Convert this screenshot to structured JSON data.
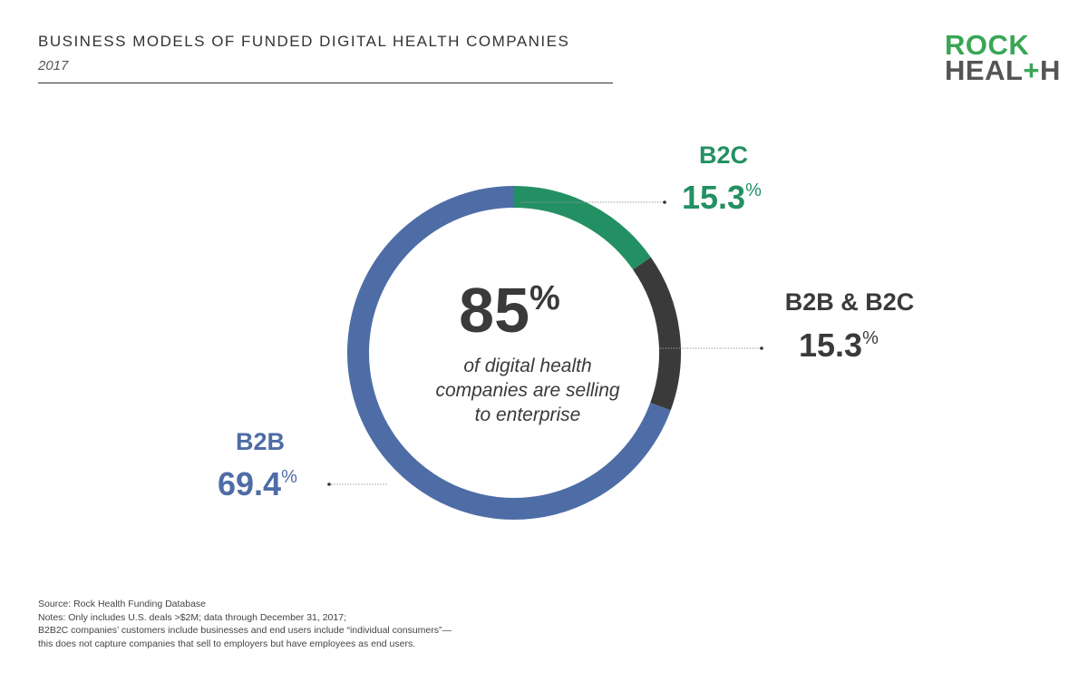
{
  "header": {
    "title": "BUSINESS MODELS OF FUNDED DIGITAL HEALTH COMPANIES",
    "subtitle": "2017"
  },
  "logo": {
    "line1": "ROCK",
    "line2_pre": "HEAL",
    "line2_plus": "+",
    "line2_post": "H",
    "colors": {
      "green": "#3aa655",
      "gray": "#555555"
    }
  },
  "chart_data": {
    "type": "pie",
    "style": "donut",
    "title": "BUSINESS MODELS OF FUNDED DIGITAL HEALTH COMPANIES",
    "subtitle": "2017",
    "slices": [
      {
        "label": "B2C",
        "value": 15.3,
        "display": "15.3",
        "unit": "%",
        "color": "#239063"
      },
      {
        "label": "B2B & B2C",
        "value": 15.3,
        "display": "15.3",
        "unit": "%",
        "color": "#3a3a3a"
      },
      {
        "label": "B2B",
        "value": 69.4,
        "display": "69.4",
        "unit": "%",
        "color": "#4e6da6"
      }
    ],
    "center": {
      "value": "85",
      "unit": "%",
      "lines": [
        "of digital health",
        "companies are selling",
        "to enterprise"
      ]
    },
    "legend": "none"
  },
  "footer": {
    "lines": [
      "Source: Rock Health Funding Database",
      "Notes: Only includes U.S. deals >$2M; data through December 31, 2017;",
      "B2B2C companies’ customers include businesses and end users include “individual consumers”—",
      "this does not capture companies that sell to employers but have employees as end users."
    ]
  }
}
